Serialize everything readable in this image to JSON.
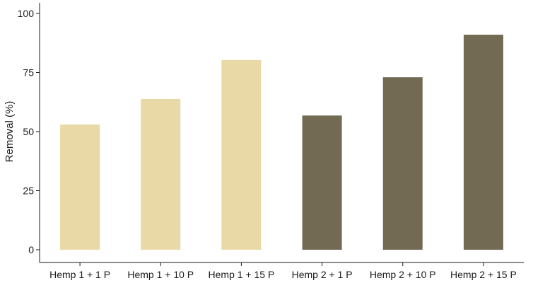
{
  "chart_data": {
    "type": "bar",
    "categories": [
      "Hemp 1 + 1 P",
      "Hemp 1 + 10 P",
      "Hemp 1 + 15 P",
      "Hemp 2 + 1 P",
      "Hemp 2 + 10 P",
      "Hemp 2 + 15 P"
    ],
    "values": [
      53,
      63.8,
      80.3,
      56.8,
      73,
      91
    ],
    "bar_colors": [
      "#e8d9a6",
      "#e8d9a6",
      "#e8d9a6",
      "#726a53",
      "#726a53",
      "#726a53"
    ],
    "title": "",
    "xlabel": "",
    "ylabel": "Removal (%)",
    "ylim": [
      0,
      100
    ],
    "yticks": [
      0,
      25,
      50,
      75,
      100
    ],
    "grid": false,
    "legend": "none"
  }
}
